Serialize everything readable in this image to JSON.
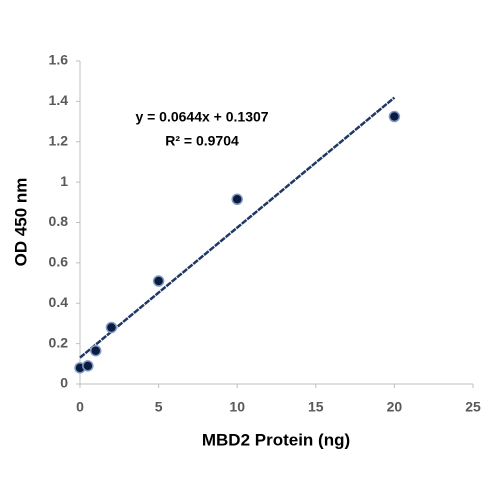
{
  "chart_data": {
    "type": "scatter",
    "x_label": "MBD2 Protein (ng)",
    "y_label": "OD 450 nm",
    "series": [
      {
        "name": "OD 450 nm",
        "color": "#0d1b3e",
        "edge_color": "#7f9cc9",
        "x": [
          0,
          0.5,
          1,
          2,
          5,
          10,
          20
        ],
        "values": [
          0.08,
          0.09,
          0.165,
          0.28,
          0.51,
          0.915,
          1.325
        ]
      }
    ],
    "trendline": {
      "slope": 0.0644,
      "intercept": 0.1307,
      "color": "#1f3864"
    },
    "annotations": [
      "y = 0.0644x + 0.1307",
      "R² = 0.9704"
    ],
    "xlim": [
      0,
      25
    ],
    "xticks": [
      0,
      5,
      10,
      15,
      20,
      25
    ],
    "ylim": [
      0,
      1.6
    ],
    "yticks": [
      0,
      0.2,
      0.4,
      0.6,
      0.8,
      1,
      1.2,
      1.4,
      1.6
    ],
    "grid": false
  }
}
